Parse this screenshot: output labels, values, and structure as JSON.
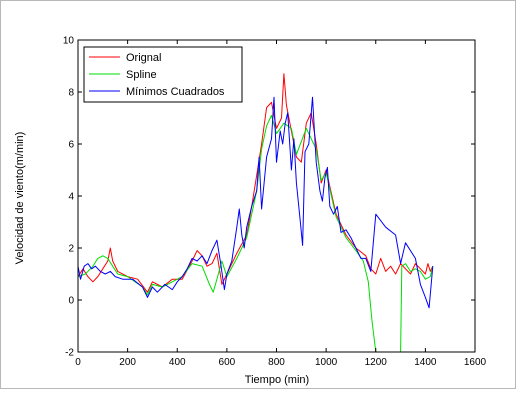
{
  "chart_data": {
    "type": "line",
    "title": "",
    "xlabel": "Tiempo (min)",
    "ylabel": "Velocidad de viento(m/min)",
    "xlim": [
      0,
      1600
    ],
    "ylim": [
      -2,
      10
    ],
    "x_ticks": [
      0,
      200,
      400,
      600,
      800,
      1000,
      1200,
      1400,
      1600
    ],
    "y_ticks": [
      -2,
      0,
      2,
      4,
      6,
      8,
      10
    ],
    "grid": false,
    "legend_position": "top-left",
    "series": [
      {
        "name": "Orignal",
        "color": "#ff0000",
        "points": [
          [
            0,
            0.9
          ],
          [
            20,
            1.2
          ],
          [
            40,
            0.9
          ],
          [
            60,
            0.7
          ],
          [
            80,
            0.9
          ],
          [
            100,
            1.2
          ],
          [
            120,
            1.5
          ],
          [
            130,
            2.0
          ],
          [
            140,
            1.5
          ],
          [
            160,
            1.1
          ],
          [
            200,
            0.9
          ],
          [
            240,
            0.8
          ],
          [
            280,
            0.3
          ],
          [
            300,
            0.7
          ],
          [
            340,
            0.5
          ],
          [
            380,
            0.8
          ],
          [
            420,
            0.8
          ],
          [
            460,
            1.5
          ],
          [
            480,
            1.9
          ],
          [
            500,
            1.7
          ],
          [
            520,
            1.3
          ],
          [
            540,
            1.4
          ],
          [
            560,
            1.8
          ],
          [
            580,
            0.6
          ],
          [
            600,
            1.0
          ],
          [
            640,
            1.8
          ],
          [
            680,
            2.5
          ],
          [
            700,
            3.6
          ],
          [
            720,
            4.8
          ],
          [
            740,
            6.0
          ],
          [
            760,
            7.4
          ],
          [
            780,
            7.6
          ],
          [
            800,
            6.6
          ],
          [
            820,
            7.0
          ],
          [
            830,
            8.7
          ],
          [
            840,
            7.5
          ],
          [
            860,
            6.5
          ],
          [
            880,
            5.5
          ],
          [
            900,
            5.3
          ],
          [
            920,
            6.8
          ],
          [
            940,
            7.2
          ],
          [
            960,
            6.0
          ],
          [
            980,
            4.5
          ],
          [
            1000,
            5.0
          ],
          [
            1040,
            3.3
          ],
          [
            1080,
            2.5
          ],
          [
            1120,
            2.0
          ],
          [
            1160,
            1.7
          ],
          [
            1180,
            1.2
          ],
          [
            1200,
            1.0
          ],
          [
            1220,
            1.6
          ],
          [
            1240,
            1.1
          ],
          [
            1260,
            1.3
          ],
          [
            1280,
            1.0
          ],
          [
            1300,
            1.4
          ],
          [
            1320,
            1.2
          ],
          [
            1340,
            1.0
          ],
          [
            1360,
            1.4
          ],
          [
            1380,
            1.2
          ],
          [
            1400,
            1.0
          ],
          [
            1410,
            1.4
          ],
          [
            1420,
            1.1
          ],
          [
            1430,
            1.3
          ]
        ]
      },
      {
        "name": "Spline",
        "color": "#00dd00",
        "points": [
          [
            0,
            0.9
          ],
          [
            30,
            1.0
          ],
          [
            60,
            1.3
          ],
          [
            80,
            1.6
          ],
          [
            100,
            1.7
          ],
          [
            120,
            1.6
          ],
          [
            140,
            1.3
          ],
          [
            160,
            1.0
          ],
          [
            200,
            0.9
          ],
          [
            260,
            0.5
          ],
          [
            280,
            0.2
          ],
          [
            300,
            0.6
          ],
          [
            340,
            0.5
          ],
          [
            380,
            0.7
          ],
          [
            420,
            0.9
          ],
          [
            460,
            1.4
          ],
          [
            500,
            1.3
          ],
          [
            530,
            0.6
          ],
          [
            545,
            0.3
          ],
          [
            560,
            0.8
          ],
          [
            580,
            1.5
          ],
          [
            600,
            0.9
          ],
          [
            640,
            1.6
          ],
          [
            680,
            2.4
          ],
          [
            720,
            4.2
          ],
          [
            740,
            5.8
          ],
          [
            760,
            6.7
          ],
          [
            780,
            7.1
          ],
          [
            800,
            6.4
          ],
          [
            830,
            6.8
          ],
          [
            860,
            6.6
          ],
          [
            880,
            5.6
          ],
          [
            920,
            6.6
          ],
          [
            960,
            5.8
          ],
          [
            980,
            4.6
          ],
          [
            1000,
            4.9
          ],
          [
            1040,
            3.2
          ],
          [
            1080,
            2.4
          ],
          [
            1120,
            1.9
          ],
          [
            1150,
            1.5
          ],
          [
            1170,
            0.7
          ],
          [
            1185,
            -0.8
          ],
          [
            1200,
            -2.0
          ],
          [
            1240,
            -2.6
          ],
          [
            1280,
            -2.6
          ],
          [
            1300,
            -2.0
          ],
          [
            1305,
            1.3
          ],
          [
            1320,
            1.4
          ],
          [
            1340,
            1.1
          ],
          [
            1360,
            1.2
          ],
          [
            1380,
            1.1
          ],
          [
            1400,
            0.8
          ],
          [
            1420,
            0.9
          ],
          [
            1430,
            1.3
          ]
        ]
      },
      {
        "name": "Mínimos Cuadrados",
        "color": "#0000ff",
        "points": [
          [
            0,
            1.3
          ],
          [
            10,
            0.8
          ],
          [
            25,
            1.3
          ],
          [
            40,
            1.4
          ],
          [
            55,
            1.2
          ],
          [
            70,
            1.3
          ],
          [
            90,
            1.1
          ],
          [
            110,
            1.0
          ],
          [
            130,
            1.1
          ],
          [
            150,
            0.9
          ],
          [
            180,
            0.8
          ],
          [
            220,
            0.8
          ],
          [
            260,
            0.5
          ],
          [
            280,
            0.1
          ],
          [
            300,
            0.5
          ],
          [
            320,
            0.3
          ],
          [
            350,
            0.6
          ],
          [
            380,
            0.4
          ],
          [
            400,
            0.7
          ],
          [
            420,
            0.9
          ],
          [
            440,
            1.2
          ],
          [
            460,
            1.6
          ],
          [
            480,
            1.5
          ],
          [
            500,
            1.7
          ],
          [
            520,
            1.4
          ],
          [
            540,
            1.9
          ],
          [
            560,
            2.3
          ],
          [
            575,
            1.4
          ],
          [
            590,
            0.4
          ],
          [
            600,
            1.0
          ],
          [
            620,
            1.5
          ],
          [
            640,
            2.8
          ],
          [
            650,
            3.5
          ],
          [
            660,
            2.5
          ],
          [
            670,
            2.0
          ],
          [
            680,
            2.8
          ],
          [
            700,
            3.6
          ],
          [
            720,
            4.2
          ],
          [
            730,
            5.5
          ],
          [
            740,
            3.5
          ],
          [
            760,
            5.5
          ],
          [
            780,
            6.2
          ],
          [
            790,
            7.8
          ],
          [
            800,
            5.3
          ],
          [
            815,
            6.5
          ],
          [
            825,
            6.0
          ],
          [
            835,
            6.8
          ],
          [
            845,
            7.2
          ],
          [
            860,
            5.0
          ],
          [
            870,
            6.2
          ],
          [
            880,
            4.5
          ],
          [
            895,
            3.1
          ],
          [
            905,
            2.1
          ],
          [
            915,
            5.7
          ],
          [
            930,
            6.0
          ],
          [
            945,
            7.8
          ],
          [
            960,
            5.3
          ],
          [
            975,
            4.2
          ],
          [
            985,
            3.8
          ],
          [
            995,
            4.7
          ],
          [
            1005,
            5.1
          ],
          [
            1015,
            3.6
          ],
          [
            1030,
            3.3
          ],
          [
            1045,
            3.6
          ],
          [
            1060,
            2.6
          ],
          [
            1080,
            2.7
          ],
          [
            1100,
            2.4
          ],
          [
            1120,
            2.0
          ],
          [
            1140,
            1.6
          ],
          [
            1160,
            1.6
          ],
          [
            1180,
            1.1
          ],
          [
            1200,
            3.3
          ],
          [
            1240,
            2.8
          ],
          [
            1280,
            2.5
          ],
          [
            1300,
            1.4
          ],
          [
            1320,
            2.2
          ],
          [
            1360,
            1.6
          ],
          [
            1380,
            0.6
          ],
          [
            1400,
            0.1
          ],
          [
            1415,
            -0.3
          ],
          [
            1430,
            1.3
          ]
        ]
      }
    ]
  }
}
